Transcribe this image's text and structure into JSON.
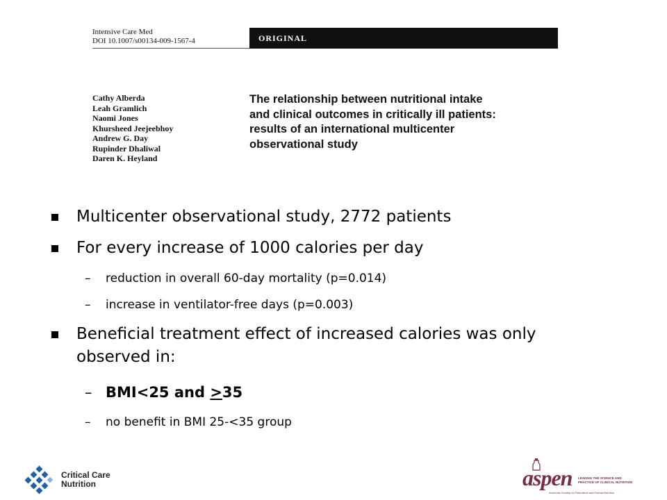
{
  "article": {
    "journal_line1": "Intensive Care Med",
    "journal_line2": "DOI 10.1007/s00134-009-1567-4",
    "section_label": "ORIGINAL",
    "authors": [
      "Cathy Alberda",
      "Leah Gramlich",
      "Naomi Jones",
      "Khursheed Jeejeebhoy",
      "Andrew G. Day",
      "Rupinder Dhaliwal",
      "Daren K. Heyland"
    ],
    "title_lines": [
      "The relationship between nutritional intake",
      "and clinical outcomes in critically ill patients:",
      "results of an international multicenter",
      "observational study"
    ]
  },
  "bullets": {
    "b1": "Multicenter observational study, 2772 patients",
    "b2": "For every increase of 1000 calories per day",
    "b2_sub1": "reduction in overall 60-day mortality (p=0.014)",
    "b2_sub2": "increase in ventilator-free days  (p=0.003)",
    "b3_line1": "Beneficial treatment effect of increased calories was only",
    "b3_line2": "observed in:",
    "b3_sub1_pre": "BMI<25 and ",
    "b3_sub1_ul": ">",
    "b3_sub1_post": "35",
    "b3_sub2": "no benefit in BMI 25-<35 group",
    "dash": "–"
  },
  "logos": {
    "ccn_line1": "Critical Care",
    "ccn_line2": "Nutrition",
    "ccn_color": "#1f5fa8",
    "aspen_word": "aspen",
    "aspen_tag": "LEADING THE SCIENCE AND PRACTICE OF CLINICAL NUTRITION",
    "aspen_sub": "American Society for Parenteral and Enteral Nutrition",
    "aspen_color": "#7a2b4a"
  }
}
